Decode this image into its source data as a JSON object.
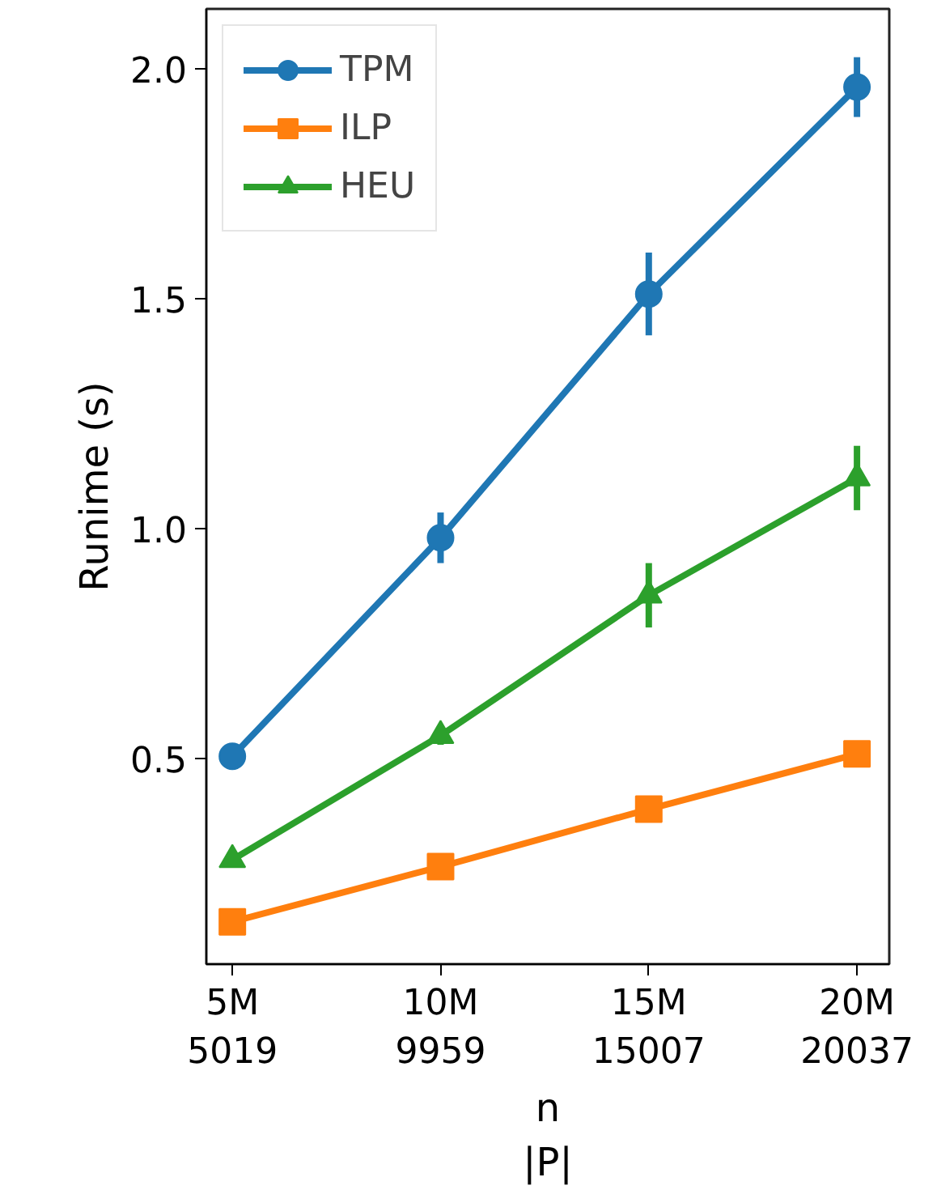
{
  "chart_data": {
    "type": "line",
    "xlabel": "n\n|P|",
    "ylabel": "Runime (s)",
    "categories": [
      "5M\n5019",
      "10M\n9959",
      "15M\n15007",
      "20M\n20037"
    ],
    "ylim": [
      0.053,
      2.13
    ],
    "yticks": [
      {
        "value": 0.5,
        "label": "0.5"
      },
      {
        "value": 1,
        "label": "1.0"
      },
      {
        "value": 1.5,
        "label": "1.5"
      },
      {
        "value": 2,
        "label": "2.0"
      }
    ],
    "grid": false,
    "legend": "top left",
    "series": [
      {
        "name": "TPM",
        "color": "#1f77b4",
        "marker": "circle",
        "values": [
          0.505,
          0.98,
          1.51,
          1.96
        ],
        "errors": [
          0.01,
          0.055,
          0.09,
          0.065
        ]
      },
      {
        "name": "ILP",
        "color": "#ff7f0e",
        "marker": "square",
        "values": [
          0.145,
          0.265,
          0.39,
          0.51
        ],
        "errors": [
          0.01,
          0.01,
          0.01,
          0.01
        ]
      },
      {
        "name": "HEU",
        "color": "#2ca02c",
        "marker": "triangle",
        "values": [
          0.28,
          0.55,
          0.855,
          1.11
        ],
        "errors": [
          0.01,
          0.02,
          0.07,
          0.07
        ]
      }
    ]
  }
}
